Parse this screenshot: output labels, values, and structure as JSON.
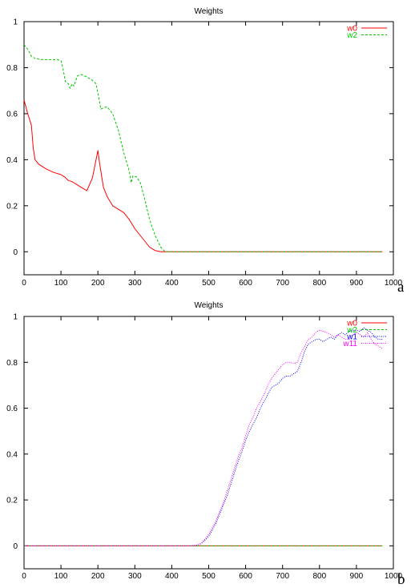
{
  "chart_data": [
    {
      "type": "line",
      "panel_label": "a",
      "title": "Weights",
      "xlabel": "",
      "ylabel": "",
      "xlim": [
        0,
        1000
      ],
      "ylim": [
        -0.1,
        1
      ],
      "xticks": [
        0,
        100,
        200,
        300,
        400,
        500,
        600,
        700,
        800,
        900,
        1000
      ],
      "yticks": [
        0,
        0.2,
        0.4,
        0.6,
        0.8,
        1
      ],
      "grid": false,
      "legend": "top-right",
      "series": [
        {
          "name": "w0",
          "color": "#ff0000",
          "dash": "solid",
          "points": [
            [
              0,
              0.66
            ],
            [
              10,
              0.6
            ],
            [
              20,
              0.55
            ],
            [
              25,
              0.45
            ],
            [
              30,
              0.4
            ],
            [
              40,
              0.38
            ],
            [
              60,
              0.36
            ],
            [
              80,
              0.345
            ],
            [
              100,
              0.335
            ],
            [
              110,
              0.325
            ],
            [
              120,
              0.31
            ],
            [
              130,
              0.305
            ],
            [
              150,
              0.285
            ],
            [
              170,
              0.265
            ],
            [
              185,
              0.32
            ],
            [
              200,
              0.44
            ],
            [
              205,
              0.38
            ],
            [
              215,
              0.28
            ],
            [
              225,
              0.24
            ],
            [
              240,
              0.2
            ],
            [
              260,
              0.18
            ],
            [
              270,
              0.17
            ],
            [
              285,
              0.14
            ],
            [
              300,
              0.1
            ],
            [
              320,
              0.06
            ],
            [
              340,
              0.02
            ],
            [
              355,
              0.005
            ],
            [
              370,
              0
            ],
            [
              400,
              0
            ],
            [
              500,
              0
            ],
            [
              600,
              0
            ],
            [
              700,
              0
            ],
            [
              800,
              0
            ],
            [
              900,
              0
            ],
            [
              970,
              0
            ]
          ]
        },
        {
          "name": "w2",
          "color": "#00c800",
          "dash": "dashed",
          "points": [
            [
              0,
              0.9
            ],
            [
              10,
              0.88
            ],
            [
              20,
              0.85
            ],
            [
              30,
              0.84
            ],
            [
              50,
              0.835
            ],
            [
              70,
              0.835
            ],
            [
              90,
              0.835
            ],
            [
              100,
              0.83
            ],
            [
              105,
              0.8
            ],
            [
              112,
              0.74
            ],
            [
              120,
              0.73
            ],
            [
              125,
              0.71
            ],
            [
              130,
              0.73
            ],
            [
              135,
              0.72
            ],
            [
              145,
              0.765
            ],
            [
              155,
              0.77
            ],
            [
              170,
              0.76
            ],
            [
              185,
              0.745
            ],
            [
              195,
              0.73
            ],
            [
              200,
              0.69
            ],
            [
              208,
              0.62
            ],
            [
              215,
              0.625
            ],
            [
              225,
              0.63
            ],
            [
              240,
              0.6
            ],
            [
              255,
              0.53
            ],
            [
              270,
              0.43
            ],
            [
              285,
              0.35
            ],
            [
              290,
              0.3
            ],
            [
              295,
              0.33
            ],
            [
              305,
              0.325
            ],
            [
              315,
              0.3
            ],
            [
              325,
              0.24
            ],
            [
              340,
              0.14
            ],
            [
              355,
              0.07
            ],
            [
              370,
              0.02
            ],
            [
              380,
              0.003
            ],
            [
              390,
              0
            ],
            [
              500,
              0
            ],
            [
              600,
              0
            ],
            [
              700,
              0
            ],
            [
              800,
              0
            ],
            [
              900,
              0
            ],
            [
              970,
              0
            ]
          ]
        }
      ]
    },
    {
      "type": "line",
      "panel_label": "b",
      "title": "Weights",
      "xlabel": "",
      "ylabel": "",
      "xlim": [
        0,
        1000
      ],
      "ylim": [
        -0.1,
        1
      ],
      "xticks": [
        0,
        100,
        200,
        300,
        400,
        500,
        600,
        700,
        800,
        900,
        1000
      ],
      "yticks": [
        0,
        0.2,
        0.4,
        0.6,
        0.8,
        1
      ],
      "grid": false,
      "legend": "top-right",
      "series": [
        {
          "name": "w0",
          "color": "#ff0000",
          "dash": "solid",
          "points": [
            [
              0,
              0
            ],
            [
              100,
              0
            ],
            [
              200,
              0
            ],
            [
              300,
              0
            ],
            [
              400,
              0
            ],
            [
              500,
              0
            ],
            [
              600,
              0
            ],
            [
              700,
              0
            ],
            [
              800,
              0
            ],
            [
              900,
              0
            ],
            [
              970,
              0
            ]
          ]
        },
        {
          "name": "w2",
          "color": "#00c800",
          "dash": "dashed",
          "points": [
            [
              0,
              0
            ],
            [
              100,
              0
            ],
            [
              200,
              0
            ],
            [
              300,
              0
            ],
            [
              400,
              0
            ],
            [
              500,
              0
            ],
            [
              600,
              0
            ],
            [
              700,
              0
            ],
            [
              800,
              0
            ],
            [
              900,
              0
            ],
            [
              970,
              0
            ]
          ]
        },
        {
          "name": "w1",
          "color": "#0000ff",
          "dash": "dotted",
          "points": [
            [
              0,
              0
            ],
            [
              100,
              0
            ],
            [
              200,
              0
            ],
            [
              300,
              0
            ],
            [
              400,
              0
            ],
            [
              450,
              0
            ],
            [
              470,
              0.003
            ],
            [
              480,
              0.01
            ],
            [
              490,
              0.025
            ],
            [
              500,
              0.04
            ],
            [
              510,
              0.07
            ],
            [
              520,
              0.1
            ],
            [
              530,
              0.14
            ],
            [
              540,
              0.18
            ],
            [
              550,
              0.22
            ],
            [
              560,
              0.27
            ],
            [
              570,
              0.32
            ],
            [
              580,
              0.37
            ],
            [
              590,
              0.41
            ],
            [
              600,
              0.46
            ],
            [
              610,
              0.5
            ],
            [
              620,
              0.53
            ],
            [
              630,
              0.56
            ],
            [
              640,
              0.6
            ],
            [
              650,
              0.63
            ],
            [
              660,
              0.66
            ],
            [
              670,
              0.69
            ],
            [
              680,
              0.7
            ],
            [
              690,
              0.71
            ],
            [
              700,
              0.73
            ],
            [
              710,
              0.74
            ],
            [
              720,
              0.74
            ],
            [
              730,
              0.75
            ],
            [
              740,
              0.76
            ],
            [
              750,
              0.8
            ],
            [
              760,
              0.85
            ],
            [
              770,
              0.88
            ],
            [
              780,
              0.89
            ],
            [
              790,
              0.9
            ],
            [
              800,
              0.9
            ],
            [
              810,
              0.89
            ],
            [
              820,
              0.9
            ],
            [
              830,
              0.91
            ],
            [
              840,
              0.9
            ],
            [
              850,
              0.92
            ],
            [
              860,
              0.93
            ],
            [
              870,
              0.92
            ],
            [
              880,
              0.935
            ],
            [
              890,
              0.94
            ],
            [
              900,
              0.94
            ],
            [
              910,
              0.935
            ],
            [
              920,
              0.95
            ],
            [
              930,
              0.94
            ],
            [
              940,
              0.93
            ],
            [
              950,
              0.91
            ],
            [
              960,
              0.9
            ],
            [
              970,
              0.9
            ]
          ]
        },
        {
          "name": "w11",
          "color": "#ff00ff",
          "dash": "dotted",
          "points": [
            [
              0,
              0
            ],
            [
              100,
              0
            ],
            [
              200,
              0
            ],
            [
              300,
              0
            ],
            [
              400,
              0
            ],
            [
              450,
              0
            ],
            [
              470,
              0.004
            ],
            [
              480,
              0.012
            ],
            [
              490,
              0.03
            ],
            [
              500,
              0.05
            ],
            [
              510,
              0.08
            ],
            [
              520,
              0.11
            ],
            [
              530,
              0.15
            ],
            [
              540,
              0.19
            ],
            [
              550,
              0.24
            ],
            [
              560,
              0.29
            ],
            [
              570,
              0.34
            ],
            [
              580,
              0.39
            ],
            [
              590,
              0.43
            ],
            [
              600,
              0.48
            ],
            [
              610,
              0.53
            ],
            [
              620,
              0.56
            ],
            [
              630,
              0.6
            ],
            [
              640,
              0.63
            ],
            [
              650,
              0.66
            ],
            [
              660,
              0.7
            ],
            [
              670,
              0.73
            ],
            [
              680,
              0.75
            ],
            [
              690,
              0.77
            ],
            [
              700,
              0.79
            ],
            [
              710,
              0.8
            ],
            [
              720,
              0.8
            ],
            [
              730,
              0.795
            ],
            [
              740,
              0.8
            ],
            [
              750,
              0.84
            ],
            [
              760,
              0.87
            ],
            [
              770,
              0.9
            ],
            [
              780,
              0.91
            ],
            [
              790,
              0.93
            ],
            [
              800,
              0.94
            ],
            [
              810,
              0.935
            ],
            [
              820,
              0.93
            ],
            [
              830,
              0.92
            ],
            [
              840,
              0.91
            ],
            [
              850,
              0.92
            ],
            [
              860,
              0.91
            ],
            [
              870,
              0.9
            ],
            [
              880,
              0.9
            ],
            [
              890,
              0.92
            ],
            [
              900,
              0.93
            ],
            [
              910,
              0.92
            ],
            [
              920,
              0.91
            ],
            [
              930,
              0.93
            ],
            [
              940,
              0.9
            ],
            [
              950,
              0.88
            ],
            [
              960,
              0.87
            ],
            [
              970,
              0.86
            ]
          ]
        }
      ]
    }
  ]
}
